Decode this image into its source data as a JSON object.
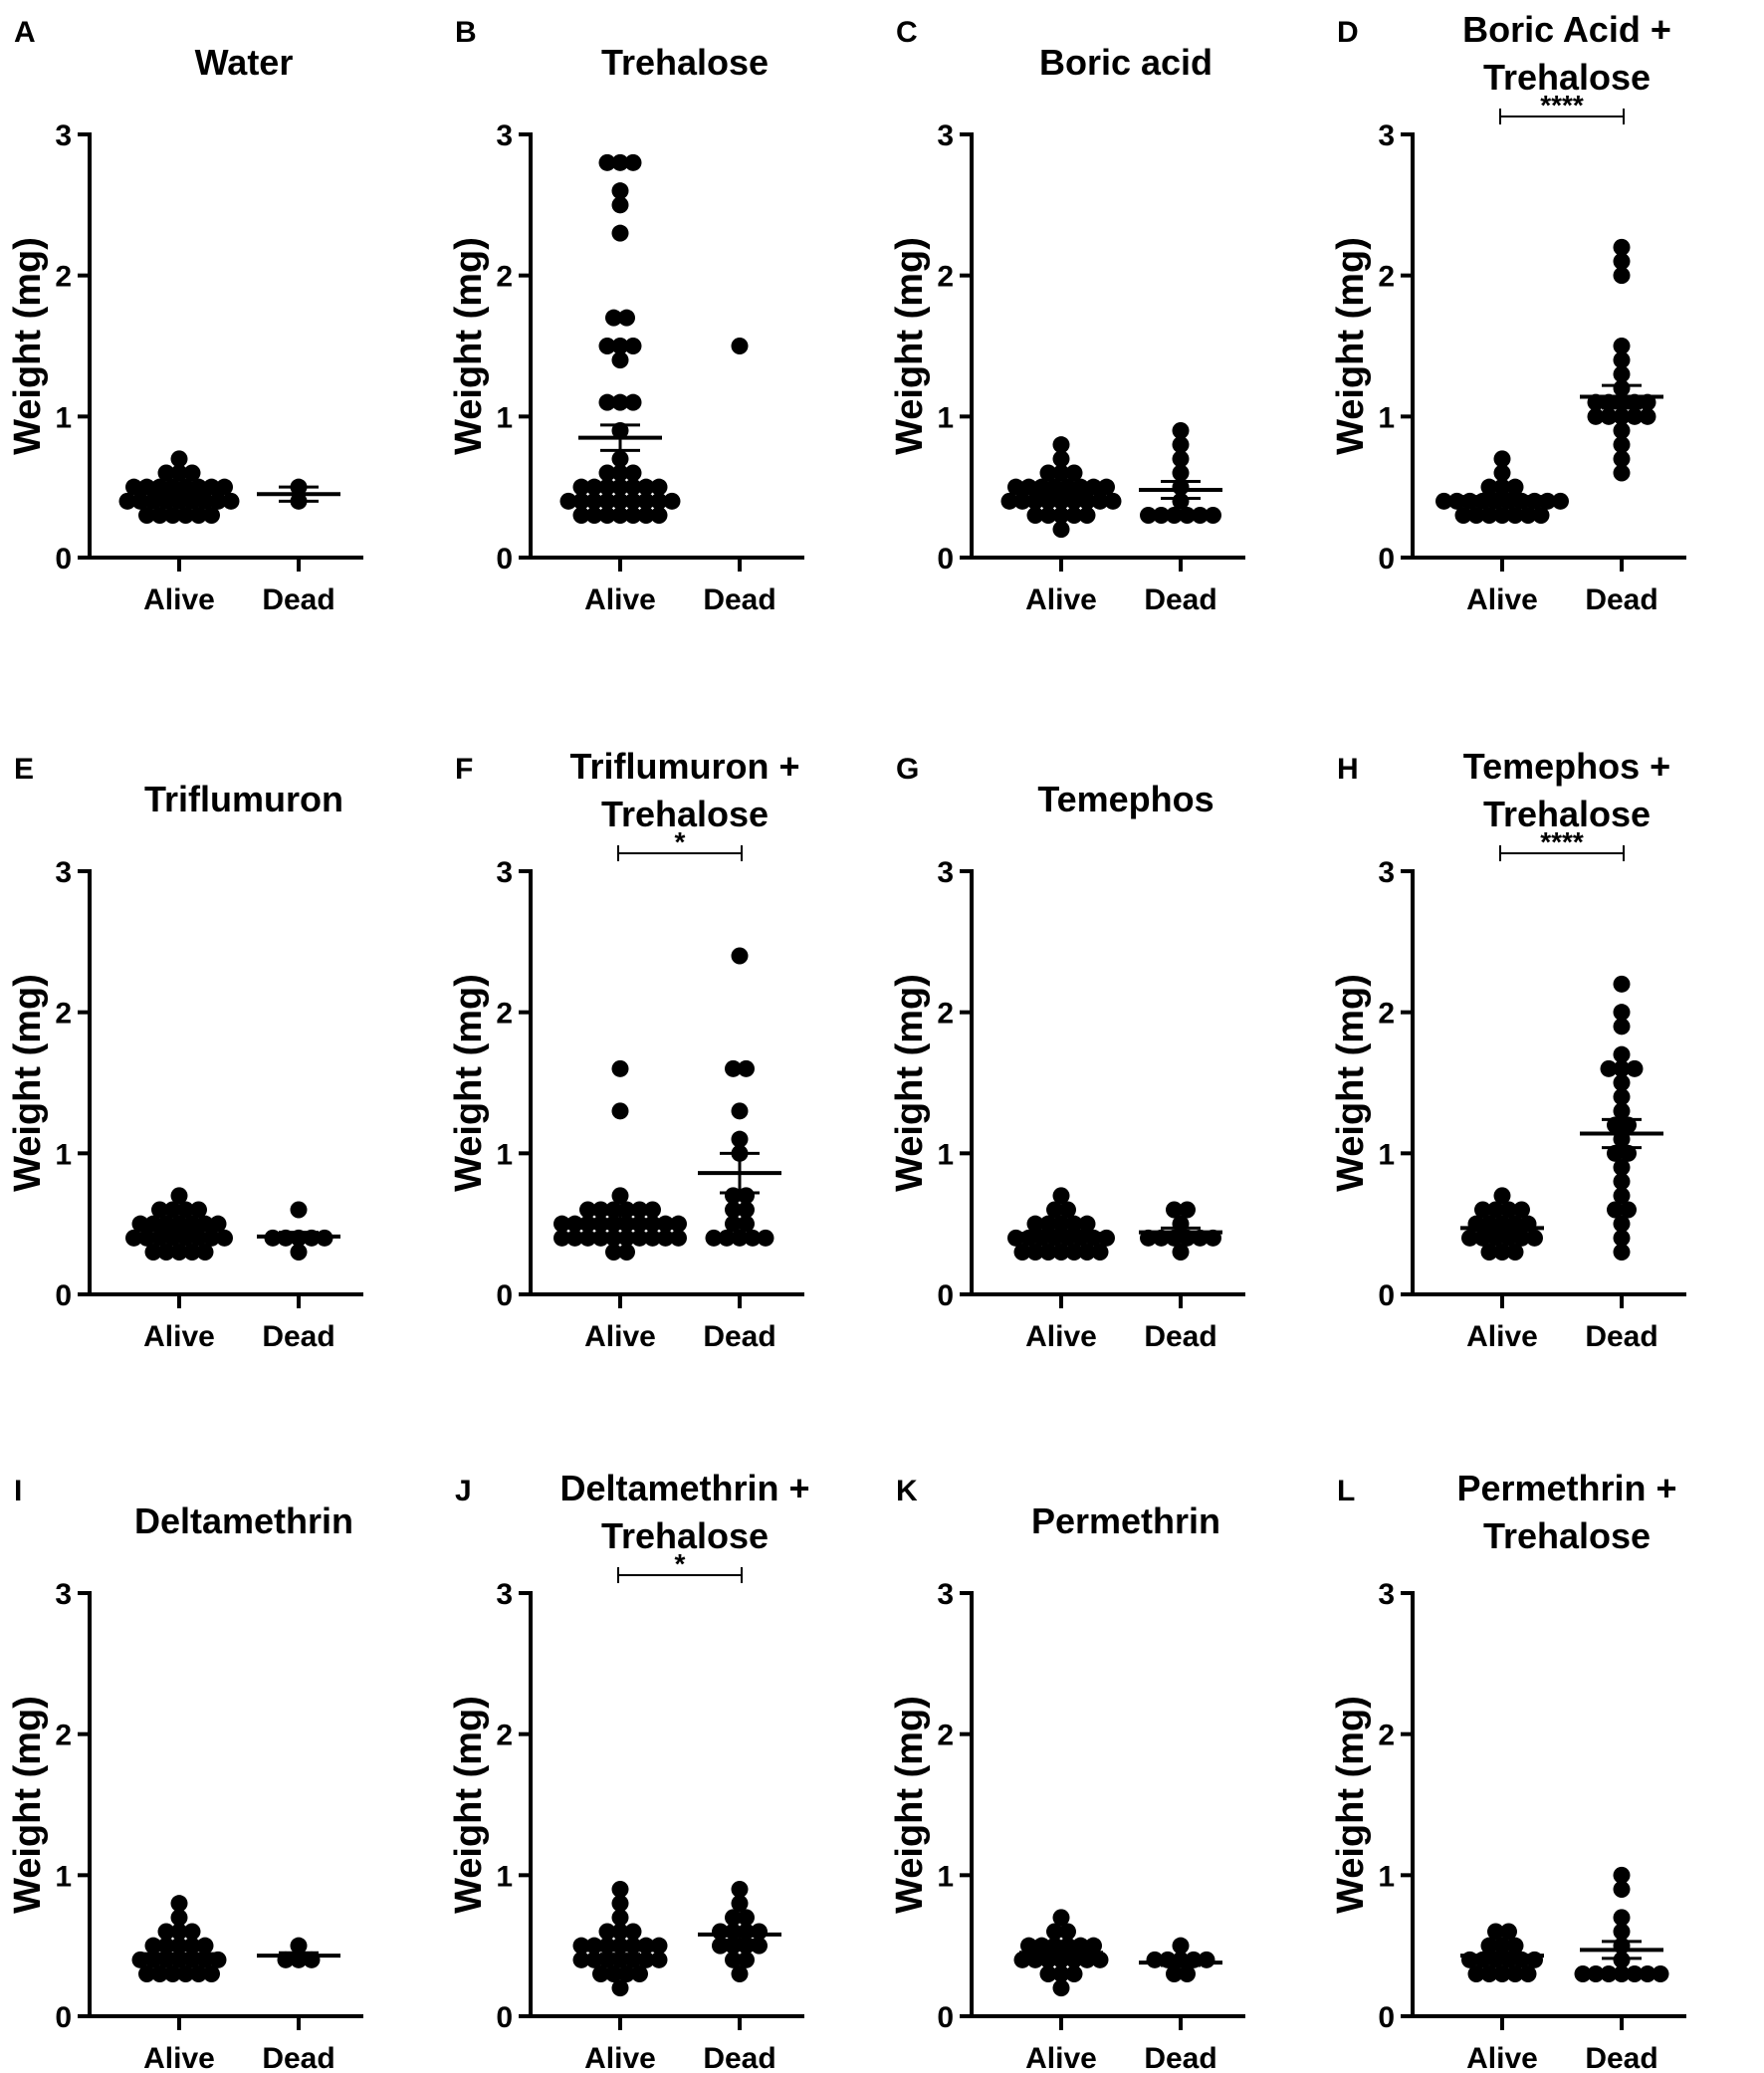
{
  "chart_data": [
    {
      "type": "scatter",
      "letter": "A",
      "title": [
        "Water"
      ],
      "ylabel": "Weight  (mg)",
      "ylim": [
        0,
        3
      ],
      "yticks": [
        "0",
        "1",
        "2",
        "3"
      ],
      "categories": [
        "Alive",
        "Dead"
      ],
      "significance": null,
      "groups": [
        {
          "name": "Alive",
          "values": [
            0.7,
            0.6,
            0.6,
            0.6,
            0.5,
            0.5,
            0.5,
            0.5,
            0.5,
            0.5,
            0.5,
            0.5,
            0.4,
            0.4,
            0.4,
            0.4,
            0.4,
            0.4,
            0.4,
            0.4,
            0.4,
            0.3,
            0.3,
            0.3,
            0.3,
            0.3,
            0.3
          ],
          "mean": 0.46,
          "sem": 0.02
        },
        {
          "name": "Dead",
          "values": [
            0.5,
            0.4
          ],
          "mean": 0.45,
          "sem": 0.05
        }
      ]
    },
    {
      "type": "scatter",
      "letter": "B",
      "title": [
        "Trehalose"
      ],
      "ylabel": "Weight  (mg)",
      "ylim": [
        0,
        3
      ],
      "yticks": [
        "0",
        "1",
        "2",
        "3"
      ],
      "categories": [
        "Alive",
        "Dead"
      ],
      "significance": null,
      "groups": [
        {
          "name": "Alive",
          "values": [
            2.8,
            2.8,
            2.8,
            2.6,
            2.5,
            2.3,
            1.7,
            1.7,
            1.5,
            1.5,
            1.5,
            1.4,
            1.1,
            1.1,
            1.1,
            0.9,
            0.7,
            0.6,
            0.6,
            0.6,
            0.5,
            0.5,
            0.5,
            0.5,
            0.5,
            0.5,
            0.5,
            0.4,
            0.4,
            0.4,
            0.4,
            0.4,
            0.4,
            0.4,
            0.4,
            0.4,
            0.3,
            0.3,
            0.3,
            0.3,
            0.3,
            0.3,
            0.3
          ],
          "mean": 0.85,
          "sem": 0.09
        },
        {
          "name": "Dead",
          "values": [
            1.5
          ],
          "mean": null,
          "sem": null
        }
      ]
    },
    {
      "type": "scatter",
      "letter": "C",
      "title": [
        "Boric acid"
      ],
      "ylabel": "Weight  (mg)",
      "ylim": [
        0,
        3
      ],
      "yticks": [
        "0",
        "1",
        "2",
        "3"
      ],
      "categories": [
        "Alive",
        "Dead"
      ],
      "significance": null,
      "groups": [
        {
          "name": "Alive",
          "values": [
            0.8,
            0.7,
            0.6,
            0.6,
            0.6,
            0.5,
            0.5,
            0.5,
            0.5,
            0.5,
            0.5,
            0.5,
            0.5,
            0.4,
            0.4,
            0.4,
            0.4,
            0.4,
            0.4,
            0.4,
            0.4,
            0.4,
            0.3,
            0.3,
            0.3,
            0.3,
            0.3,
            0.2
          ],
          "mean": 0.46,
          "sem": 0.02
        },
        {
          "name": "Dead",
          "values": [
            0.9,
            0.8,
            0.7,
            0.6,
            0.5,
            0.4,
            0.3,
            0.3,
            0.3,
            0.3,
            0.3,
            0.3
          ],
          "mean": 0.48,
          "sem": 0.06
        }
      ]
    },
    {
      "type": "scatter",
      "letter": "D",
      "title": [
        "Boric Acid +",
        "Trehalose"
      ],
      "ylabel": "Weight  (mg)",
      "ylim": [
        0,
        3
      ],
      "yticks": [
        "0",
        "1",
        "2",
        "3"
      ],
      "categories": [
        "Alive",
        "Dead"
      ],
      "significance": "****",
      "groups": [
        {
          "name": "Alive",
          "values": [
            0.7,
            0.6,
            0.5,
            0.5,
            0.5,
            0.4,
            0.4,
            0.4,
            0.4,
            0.4,
            0.4,
            0.4,
            0.4,
            0.4,
            0.4,
            0.3,
            0.3,
            0.3,
            0.3,
            0.3,
            0.3,
            0.3
          ],
          "mean": 0.43,
          "sem": 0.02
        },
        {
          "name": "Dead",
          "values": [
            2.2,
            2.1,
            2.0,
            1.5,
            1.4,
            1.3,
            1.2,
            1.1,
            1.1,
            1.1,
            1.1,
            1.1,
            1.0,
            1.0,
            1.0,
            1.0,
            1.0,
            0.9,
            0.8,
            0.7,
            0.6
          ],
          "mean": 1.14,
          "sem": 0.08
        }
      ]
    },
    {
      "type": "scatter",
      "letter": "E",
      "title": [
        "Triflumuron"
      ],
      "ylabel": "Weight  (mg)",
      "ylim": [
        0,
        3
      ],
      "yticks": [
        "0",
        "1",
        "2",
        "3"
      ],
      "categories": [
        "Alive",
        "Dead"
      ],
      "significance": null,
      "groups": [
        {
          "name": "Alive",
          "values": [
            0.7,
            0.6,
            0.6,
            0.6,
            0.6,
            0.5,
            0.5,
            0.5,
            0.5,
            0.5,
            0.5,
            0.5,
            0.4,
            0.4,
            0.4,
            0.4,
            0.4,
            0.4,
            0.4,
            0.4,
            0.3,
            0.3,
            0.3,
            0.3,
            0.3
          ],
          "mean": 0.46,
          "sem": 0.02
        },
        {
          "name": "Dead",
          "values": [
            0.6,
            0.4,
            0.4,
            0.4,
            0.4,
            0.4,
            0.3
          ],
          "mean": 0.41,
          "sem": 0.03
        }
      ]
    },
    {
      "type": "scatter",
      "letter": "F",
      "title": [
        "Triflumuron +",
        "Trehalose"
      ],
      "ylabel": "Weight  (mg)",
      "ylim": [
        0,
        3
      ],
      "yticks": [
        "0",
        "1",
        "2",
        "3"
      ],
      "categories": [
        "Alive",
        "Dead"
      ],
      "significance": "*",
      "groups": [
        {
          "name": "Alive",
          "values": [
            1.6,
            1.3,
            0.7,
            0.6,
            0.6,
            0.6,
            0.6,
            0.6,
            0.6,
            0.5,
            0.5,
            0.5,
            0.5,
            0.5,
            0.5,
            0.5,
            0.5,
            0.5,
            0.5,
            0.4,
            0.4,
            0.4,
            0.4,
            0.4,
            0.4,
            0.4,
            0.4,
            0.4,
            0.4,
            0.3,
            0.3
          ],
          "mean": 0.52,
          "sem": 0.05
        },
        {
          "name": "Dead",
          "values": [
            2.4,
            1.6,
            1.6,
            1.3,
            1.1,
            1.0,
            0.7,
            0.7,
            0.6,
            0.6,
            0.5,
            0.5,
            0.4,
            0.4,
            0.4,
            0.4,
            0.4
          ],
          "mean": 0.86,
          "sem": 0.14
        }
      ]
    },
    {
      "type": "scatter",
      "letter": "G",
      "title": [
        "Temephos"
      ],
      "ylabel": "Weight  (mg)",
      "ylim": [
        0,
        3
      ],
      "yticks": [
        "0",
        "1",
        "2",
        "3"
      ],
      "categories": [
        "Alive",
        "Dead"
      ],
      "significance": null,
      "groups": [
        {
          "name": "Alive",
          "values": [
            0.7,
            0.6,
            0.6,
            0.5,
            0.5,
            0.5,
            0.5,
            0.5,
            0.4,
            0.4,
            0.4,
            0.4,
            0.4,
            0.4,
            0.4,
            0.4,
            0.3,
            0.3,
            0.3,
            0.3,
            0.3,
            0.3,
            0.3
          ],
          "mean": 0.43,
          "sem": 0.02
        },
        {
          "name": "Dead",
          "values": [
            0.6,
            0.6,
            0.5,
            0.4,
            0.4,
            0.4,
            0.4,
            0.4,
            0.4,
            0.3
          ],
          "mean": 0.44,
          "sem": 0.03
        }
      ]
    },
    {
      "type": "scatter",
      "letter": "H",
      "title": [
        "Temephos +",
        "Trehalose"
      ],
      "ylabel": "Weight  (mg)",
      "ylim": [
        0,
        3
      ],
      "yticks": [
        "0",
        "1",
        "2",
        "3"
      ],
      "categories": [
        "Alive",
        "Dead"
      ],
      "significance": "****",
      "groups": [
        {
          "name": "Alive",
          "values": [
            0.7,
            0.6,
            0.6,
            0.6,
            0.6,
            0.5,
            0.5,
            0.5,
            0.5,
            0.5,
            0.4,
            0.4,
            0.4,
            0.4,
            0.4,
            0.4,
            0.3,
            0.3,
            0.3
          ],
          "mean": 0.47,
          "sem": 0.03
        },
        {
          "name": "Dead",
          "values": [
            2.2,
            2.0,
            1.9,
            1.7,
            1.6,
            1.6,
            1.6,
            1.5,
            1.4,
            1.3,
            1.2,
            1.2,
            1.1,
            1.0,
            1.0,
            0.9,
            0.8,
            0.7,
            0.6,
            0.6,
            0.5,
            0.4,
            0.3
          ],
          "mean": 1.14,
          "sem": 0.1
        }
      ]
    },
    {
      "type": "scatter",
      "letter": "I",
      "title": [
        "Deltamethrin"
      ],
      "ylabel": "Weight  (mg)",
      "ylim": [
        0,
        3
      ],
      "yticks": [
        "0",
        "1",
        "2",
        "3"
      ],
      "categories": [
        "Alive",
        "Dead"
      ],
      "significance": null,
      "groups": [
        {
          "name": "Alive",
          "values": [
            0.8,
            0.7,
            0.6,
            0.6,
            0.6,
            0.5,
            0.5,
            0.5,
            0.5,
            0.5,
            0.4,
            0.4,
            0.4,
            0.4,
            0.4,
            0.4,
            0.4,
            0.3,
            0.3,
            0.3,
            0.3,
            0.3,
            0.3
          ],
          "mean": 0.44,
          "sem": 0.03
        },
        {
          "name": "Dead",
          "values": [
            0.5,
            0.4,
            0.4,
            0.4
          ],
          "mean": 0.43,
          "sem": 0.02
        }
      ]
    },
    {
      "type": "scatter",
      "letter": "J",
      "title": [
        "Deltamethrin +",
        "Trehalose"
      ],
      "ylabel": "Weight  (mg)",
      "ylim": [
        0,
        3
      ],
      "yticks": [
        "0",
        "1",
        "2",
        "3"
      ],
      "categories": [
        "Alive",
        "Dead"
      ],
      "significance": "*",
      "groups": [
        {
          "name": "Alive",
          "values": [
            0.9,
            0.8,
            0.7,
            0.6,
            0.6,
            0.6,
            0.5,
            0.5,
            0.5,
            0.5,
            0.5,
            0.5,
            0.5,
            0.4,
            0.4,
            0.4,
            0.4,
            0.4,
            0.4,
            0.4,
            0.3,
            0.3,
            0.3,
            0.3,
            0.2
          ],
          "mean": 0.47,
          "sem": 0.03
        },
        {
          "name": "Dead",
          "values": [
            0.9,
            0.8,
            0.7,
            0.7,
            0.6,
            0.6,
            0.6,
            0.6,
            0.5,
            0.5,
            0.5,
            0.5,
            0.4,
            0.4,
            0.3
          ],
          "mean": 0.58,
          "sem": 0.04
        }
      ]
    },
    {
      "type": "scatter",
      "letter": "K",
      "title": [
        "Permethrin"
      ],
      "ylabel": "Weight  (mg)",
      "ylim": [
        0,
        3
      ],
      "yticks": [
        "0",
        "1",
        "2",
        "3"
      ],
      "categories": [
        "Alive",
        "Dead"
      ],
      "significance": null,
      "groups": [
        {
          "name": "Alive",
          "values": [
            0.7,
            0.6,
            0.6,
            0.5,
            0.5,
            0.5,
            0.5,
            0.5,
            0.5,
            0.4,
            0.4,
            0.4,
            0.4,
            0.4,
            0.4,
            0.4,
            0.3,
            0.3,
            0.3,
            0.2
          ],
          "mean": 0.45,
          "sem": 0.03
        },
        {
          "name": "Dead",
          "values": [
            0.5,
            0.4,
            0.4,
            0.4,
            0.4,
            0.4,
            0.3,
            0.3
          ],
          "mean": 0.38,
          "sem": 0.02
        }
      ]
    },
    {
      "type": "scatter",
      "letter": "L",
      "title": [
        "Permethrin +",
        "Trehalose"
      ],
      "ylabel": "Weight  (mg)",
      "ylim": [
        0,
        3
      ],
      "yticks": [
        "0",
        "1",
        "2",
        "3"
      ],
      "categories": [
        "Alive",
        "Dead"
      ],
      "significance": null,
      "groups": [
        {
          "name": "Alive",
          "values": [
            0.6,
            0.6,
            0.5,
            0.5,
            0.5,
            0.4,
            0.4,
            0.4,
            0.4,
            0.4,
            0.4,
            0.3,
            0.3,
            0.3,
            0.3,
            0.3
          ],
          "mean": 0.43,
          "sem": 0.02
        },
        {
          "name": "Dead",
          "values": [
            1.0,
            0.9,
            0.7,
            0.6,
            0.5,
            0.4,
            0.3,
            0.3,
            0.3,
            0.3,
            0.3,
            0.3,
            0.3
          ],
          "mean": 0.47,
          "sem": 0.06
        }
      ]
    }
  ]
}
